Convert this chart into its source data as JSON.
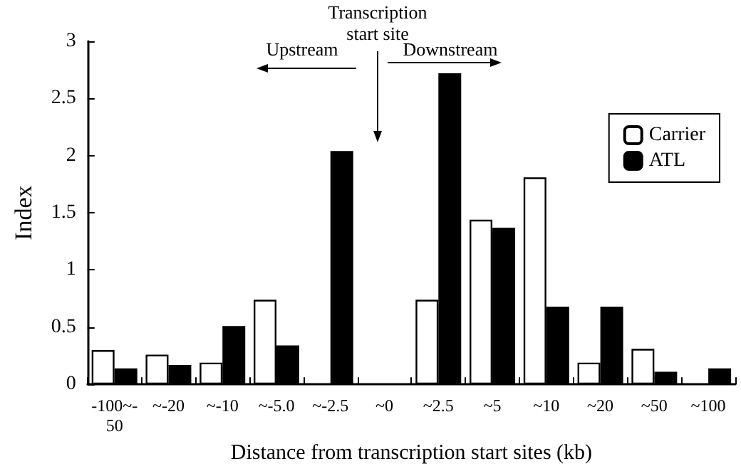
{
  "chart_data": {
    "type": "bar",
    "xlabel": "Distance from transcription start sites (kb)",
    "ylabel": "Index",
    "categories": [
      "-100~-\n50",
      "~-20",
      "~-10",
      "~-5.0",
      "~-2.5",
      "~0",
      "~2.5",
      "~5",
      "~10",
      "~20",
      "~50",
      "~100"
    ],
    "series": [
      {
        "name": "Carrier",
        "color": "#ffffff",
        "values": [
          0.3,
          0.26,
          0.19,
          0.74,
          null,
          null,
          0.74,
          1.44,
          1.81,
          0.19,
          0.31,
          null
        ]
      },
      {
        "name": "ATL",
        "color": "#000000",
        "values": [
          0.14,
          0.17,
          0.51,
          0.34,
          2.04,
          null,
          2.72,
          1.37,
          0.68,
          0.68,
          0.11,
          0.14
        ]
      }
    ],
    "ylim": [
      0,
      3
    ],
    "yticks": [
      0,
      0.5,
      1,
      1.5,
      2,
      2.5,
      3
    ],
    "grid": false,
    "legend": "top right",
    "annotations": [
      "Transcription\nstart site",
      "Upstream",
      "Downstream"
    ]
  }
}
